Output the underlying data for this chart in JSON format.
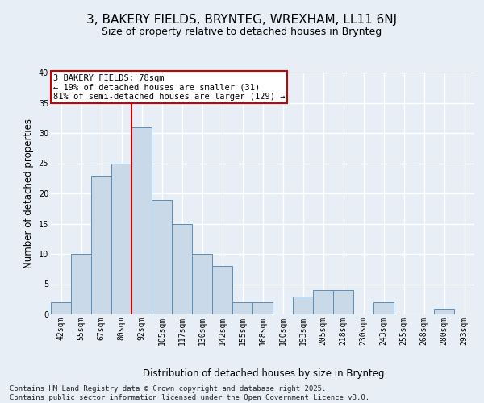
{
  "title1": "3, BAKERY FIELDS, BRYNTEG, WREXHAM, LL11 6NJ",
  "title2": "Size of property relative to detached houses in Brynteg",
  "xlabel": "Distribution of detached houses by size in Brynteg",
  "ylabel": "Number of detached properties",
  "bins": [
    "42sqm",
    "55sqm",
    "67sqm",
    "80sqm",
    "92sqm",
    "105sqm",
    "117sqm",
    "130sqm",
    "142sqm",
    "155sqm",
    "168sqm",
    "180sqm",
    "193sqm",
    "205sqm",
    "218sqm",
    "230sqm",
    "243sqm",
    "255sqm",
    "268sqm",
    "280sqm",
    "293sqm"
  ],
  "counts": [
    2,
    10,
    23,
    25,
    31,
    19,
    15,
    10,
    8,
    2,
    2,
    0,
    3,
    4,
    4,
    0,
    2,
    0,
    0,
    1,
    0
  ],
  "bar_color": "#c9d9e8",
  "bar_edge_color": "#5b8db8",
  "vline_color": "#cc0000",
  "vline_x": 3.5,
  "annotation_text": "3 BAKERY FIELDS: 78sqm\n← 19% of detached houses are smaller (31)\n81% of semi-detached houses are larger (129) →",
  "annotation_box_color": "#ffffff",
  "annotation_box_edge": "#cc0000",
  "ylim": [
    0,
    40
  ],
  "yticks": [
    0,
    5,
    10,
    15,
    20,
    25,
    30,
    35,
    40
  ],
  "footer": "Contains HM Land Registry data © Crown copyright and database right 2025.\nContains public sector information licensed under the Open Government Licence v3.0.",
  "background_color": "#e8eef5",
  "plot_bg_color": "#e8eef5",
  "grid_color": "#ffffff",
  "title_fontsize": 11,
  "subtitle_fontsize": 9,
  "axis_label_fontsize": 8.5,
  "tick_fontsize": 7,
  "footer_fontsize": 6.5,
  "annotation_fontsize": 7.5
}
